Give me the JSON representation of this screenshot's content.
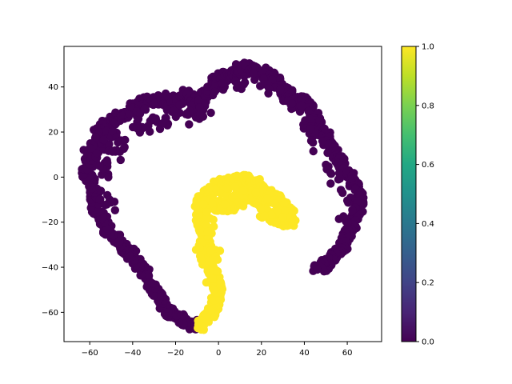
{
  "chart_data": {
    "type": "scatter",
    "title": "",
    "xlabel": "",
    "ylabel": "",
    "xlim": [
      -72,
      76
    ],
    "ylim": [
      -73,
      58
    ],
    "x_ticks": [
      -60,
      -40,
      -20,
      0,
      20,
      40,
      60
    ],
    "y_ticks": [
      -60,
      -40,
      -20,
      0,
      20,
      40
    ],
    "grid": false,
    "marker_color_scale": "viridis",
    "series": [
      {
        "value": 0,
        "color": "#440154",
        "path": [
          [
            -10,
            -66
          ],
          [
            -14,
            -65
          ],
          [
            -18,
            -63
          ],
          [
            -22,
            -60
          ],
          [
            -25,
            -57
          ],
          [
            -28,
            -53
          ],
          [
            -31,
            -48
          ],
          [
            -34,
            -43
          ],
          [
            -37,
            -39
          ],
          [
            -40,
            -35
          ],
          [
            -43,
            -32
          ],
          [
            -46,
            -29
          ],
          [
            -49,
            -26
          ],
          [
            -52,
            -22
          ],
          [
            -55,
            -18
          ],
          [
            -57,
            -14
          ],
          [
            -58,
            -10
          ],
          [
            -58,
            -6
          ],
          [
            -59,
            -2
          ],
          [
            -61,
            1
          ],
          [
            -62,
            3
          ],
          [
            -60,
            7
          ],
          [
            -57,
            11
          ],
          [
            -55,
            15
          ],
          [
            -56,
            19
          ],
          [
            -54,
            22
          ],
          [
            -51,
            24
          ],
          [
            -48,
            26
          ],
          [
            -44,
            28
          ],
          [
            -40,
            31
          ],
          [
            -36,
            33
          ],
          [
            -32,
            34
          ],
          [
            -28,
            34
          ],
          [
            -24,
            35
          ],
          [
            -21,
            33
          ],
          [
            -18,
            35
          ],
          [
            -15,
            37
          ],
          [
            -12,
            34
          ],
          [
            -10,
            30
          ],
          [
            -8,
            32
          ],
          [
            -7,
            36
          ],
          [
            -4,
            39
          ],
          [
            -2,
            42
          ],
          [
            1,
            44
          ],
          [
            4,
            45
          ],
          [
            7,
            46
          ],
          [
            10,
            48
          ],
          [
            13,
            49
          ],
          [
            16,
            48
          ],
          [
            20,
            47
          ],
          [
            24,
            45
          ],
          [
            27,
            42
          ],
          [
            30,
            38
          ],
          [
            33,
            36
          ],
          [
            36,
            33
          ],
          [
            39,
            34
          ],
          [
            42,
            32
          ],
          [
            45,
            26
          ],
          [
            48,
            21
          ],
          [
            51,
            16
          ],
          [
            54,
            11
          ],
          [
            57,
            6
          ],
          [
            60,
            1
          ],
          [
            63,
            -2
          ],
          [
            65,
            -6
          ],
          [
            66,
            -10
          ],
          [
            65,
            -15
          ],
          [
            63,
            -20
          ],
          [
            61,
            -24
          ],
          [
            59,
            -28
          ],
          [
            57,
            -32
          ],
          [
            54,
            -35
          ],
          [
            51,
            -38
          ],
          [
            48,
            -40
          ],
          [
            46,
            -41
          ]
        ],
        "extra_blobs": [
          [
            -50,
            14
          ],
          [
            -47,
            10
          ],
          [
            -52,
            6
          ],
          [
            -55,
            18
          ],
          [
            -48,
            18
          ],
          [
            -44,
            15
          ],
          [
            -53,
            -8
          ],
          [
            -50,
            -12
          ],
          [
            -54,
            2
          ],
          [
            -30,
            26
          ],
          [
            -26,
            24
          ],
          [
            -34,
            22
          ],
          [
            -12,
            26
          ],
          [
            -14,
            30
          ],
          [
            -6,
            28
          ],
          [
            -20,
            30
          ],
          [
            0,
            40
          ],
          [
            8,
            42
          ],
          [
            14,
            44
          ],
          [
            22,
            42
          ],
          [
            26,
            40
          ],
          [
            32,
            32
          ],
          [
            36,
            30
          ],
          [
            40,
            24
          ],
          [
            44,
            20
          ],
          [
            46,
            14
          ],
          [
            52,
            4
          ],
          [
            55,
            0
          ],
          [
            60,
            -8
          ],
          [
            62,
            -12
          ],
          [
            58,
            -20
          ],
          [
            -60,
            14
          ],
          [
            -40,
            24
          ],
          [
            -36,
            30
          ],
          [
            -22,
            28
          ]
        ]
      },
      {
        "value": 1,
        "color": "#fde725",
        "path": [
          [
            -9,
            -66
          ],
          [
            -6,
            -64
          ],
          [
            -4,
            -61
          ],
          [
            -2,
            -58
          ],
          [
            -1,
            -54
          ],
          [
            0,
            -50
          ],
          [
            -1,
            -46
          ],
          [
            -3,
            -42
          ],
          [
            -4,
            -38
          ],
          [
            -5,
            -34
          ],
          [
            -6,
            -30
          ],
          [
            -7,
            -26
          ],
          [
            -8,
            -22
          ],
          [
            -9,
            -18
          ],
          [
            -9,
            -14
          ],
          [
            -8,
            -10
          ],
          [
            -6,
            -8
          ],
          [
            -3,
            -6
          ],
          [
            0,
            -4
          ],
          [
            3,
            -3
          ],
          [
            6,
            -2
          ],
          [
            9,
            -1
          ],
          [
            12,
            -1
          ],
          [
            15,
            -2
          ],
          [
            18,
            -3
          ],
          [
            21,
            -5
          ],
          [
            24,
            -8
          ],
          [
            27,
            -10
          ],
          [
            30,
            -12
          ],
          [
            32,
            -15
          ],
          [
            34,
            -18
          ],
          [
            33,
            -20
          ],
          [
            30,
            -19
          ],
          [
            27,
            -19
          ],
          [
            24,
            -17
          ],
          [
            21,
            -14
          ],
          [
            19,
            -11
          ],
          [
            17,
            -8
          ],
          [
            14,
            -8
          ],
          [
            11,
            -10
          ],
          [
            8,
            -12
          ],
          [
            5,
            -13
          ],
          [
            2,
            -13
          ],
          [
            -1,
            -12
          ],
          [
            -4,
            -12
          ],
          [
            -7,
            -12
          ]
        ],
        "extra_blobs": [
          [
            -6,
            -20
          ],
          [
            -4,
            -24
          ],
          [
            -8,
            -30
          ],
          [
            -2,
            -34
          ],
          [
            -6,
            -38
          ],
          [
            -4,
            -44
          ],
          [
            -2,
            -48
          ],
          [
            2,
            -8
          ],
          [
            6,
            -6
          ],
          [
            10,
            -4
          ],
          [
            14,
            -6
          ],
          [
            20,
            -8
          ],
          [
            24,
            -12
          ],
          [
            28,
            -14
          ],
          [
            30,
            -16
          ],
          [
            26,
            -18
          ],
          [
            22,
            -16
          ],
          [
            -3,
            -16
          ],
          [
            0,
            -14
          ]
        ]
      }
    ],
    "colorbar": {
      "min": 0.0,
      "max": 1.0,
      "ticks": [
        0.0,
        0.2,
        0.4,
        0.6,
        0.8,
        1.0
      ],
      "tick_labels": [
        "0.0",
        "0.2",
        "0.4",
        "0.6",
        "0.8",
        "1.0"
      ]
    }
  }
}
